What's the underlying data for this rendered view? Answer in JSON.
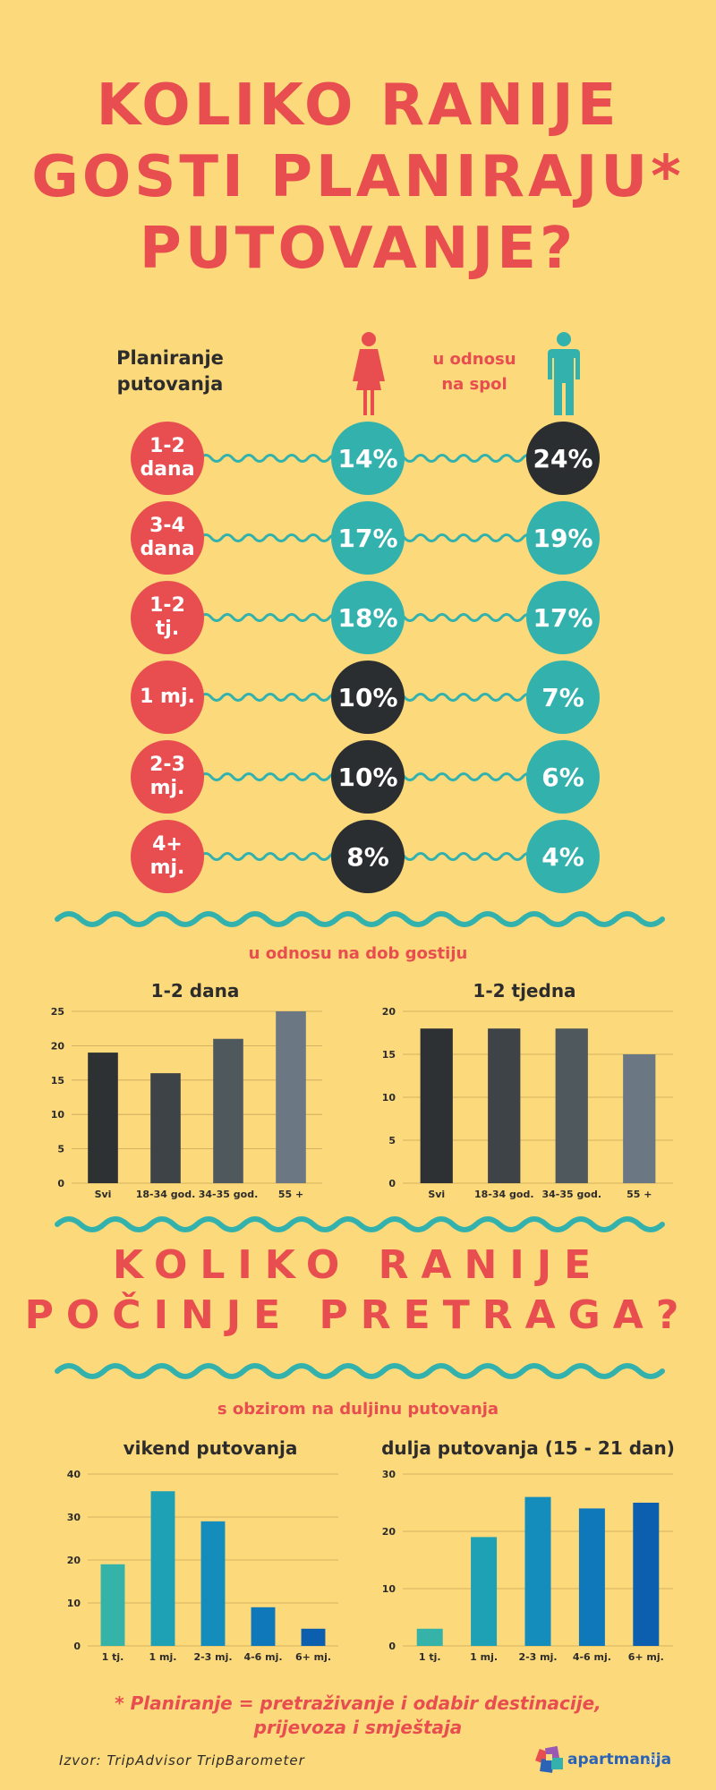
{
  "title": {
    "line1": "KOLIKO RANIJE",
    "line2": "GOSTI PLANIRAJU*",
    "line3": "PUTOVANJE?"
  },
  "gender_section": {
    "planning_label_1": "Planiranje",
    "planning_label_2": "putovanja",
    "gender_label_1": "u odnosu",
    "gender_label_2": "na spol",
    "rows": [
      {
        "period": "1-2\ndana",
        "female": "14%",
        "male": "24%",
        "female_color": "teal",
        "male_color": "dark"
      },
      {
        "period": "3-4\ndana",
        "female": "17%",
        "male": "19%",
        "female_color": "teal",
        "male_color": "teal"
      },
      {
        "period": "1-2\ntj.",
        "female": "18%",
        "male": "17%",
        "female_color": "teal",
        "male_color": "teal"
      },
      {
        "period": "1 mj.",
        "female": "10%",
        "male": "7%",
        "female_color": "dark",
        "male_color": "teal"
      },
      {
        "period": "2-3\nmj.",
        "female": "10%",
        "male": "6%",
        "female_color": "dark",
        "male_color": "teal"
      },
      {
        "period": "4+\nmj.",
        "female": "8%",
        "male": "4%",
        "female_color": "dark",
        "male_color": "teal"
      }
    ]
  },
  "age_section": {
    "subtitle": "u odnosu na dob gostiju"
  },
  "search_section": {
    "title_line1": "KOLIKO RANIJE",
    "title_line2": "POČINJE PRETRAGA?",
    "subtitle": "s obzirom na duljinu putovanja"
  },
  "chart_data": [
    {
      "type": "bar",
      "title": "1-2 dana",
      "categories": [
        "Svi",
        "18-34 god.",
        "34-35 god.",
        "55 +"
      ],
      "values": [
        19,
        16,
        21,
        25
      ],
      "ylim": [
        0,
        25
      ],
      "yticks": [
        0,
        5,
        10,
        15,
        20,
        25
      ],
      "colors": [
        "#2d3133",
        "#3d4346",
        "#4f585d",
        "#6b7782"
      ]
    },
    {
      "type": "bar",
      "title": "1-2 tjedna",
      "categories": [
        "Svi",
        "18-34 god.",
        "34-35 god.",
        "55 +"
      ],
      "values": [
        18,
        18,
        18,
        15
      ],
      "ylim": [
        0,
        20
      ],
      "yticks": [
        0,
        5,
        10,
        15,
        20
      ],
      "colors": [
        "#2d3133",
        "#3d4346",
        "#4f585d",
        "#6b7782"
      ]
    },
    {
      "type": "bar",
      "title": "vikend putovanja",
      "categories": [
        "1 tj.",
        "1 mj.",
        "2-3 mj.",
        "4-6 mj.",
        "6+ mj."
      ],
      "values": [
        19,
        36,
        29,
        9,
        4
      ],
      "ylim": [
        0,
        40
      ],
      "yticks": [
        0,
        10,
        20,
        30,
        40
      ],
      "colors": [
        "#35b3a9",
        "#1ea1b5",
        "#148cbc",
        "#0f78bb",
        "#0b5fae"
      ]
    },
    {
      "type": "bar",
      "title": "dulja putovanja (15 - 21 dan)",
      "categories": [
        "1 tj.",
        "1 mj.",
        "2-3 mj.",
        "4-6 mj.",
        "6+ mj."
      ],
      "values": [
        3,
        19,
        26,
        24,
        25
      ],
      "ylim": [
        0,
        30
      ],
      "yticks": [
        0,
        10,
        20,
        30
      ],
      "colors": [
        "#35b3a9",
        "#1ea1b5",
        "#148cbc",
        "#0f78bb",
        "#0b5fae"
      ]
    }
  ],
  "footnote": "* Planiranje = pretraživanje i odabir destinacije,\nprijevoza i smještaja",
  "source": "Izvor: TripAdvisor TripBarometer",
  "logo": {
    "name": "apartmanija",
    "tld": ".hr"
  },
  "colors": {
    "background": "#fcd97a",
    "accent_red": "#e84d50",
    "teal": "#33b2ad",
    "dark": "#2b2e30"
  }
}
